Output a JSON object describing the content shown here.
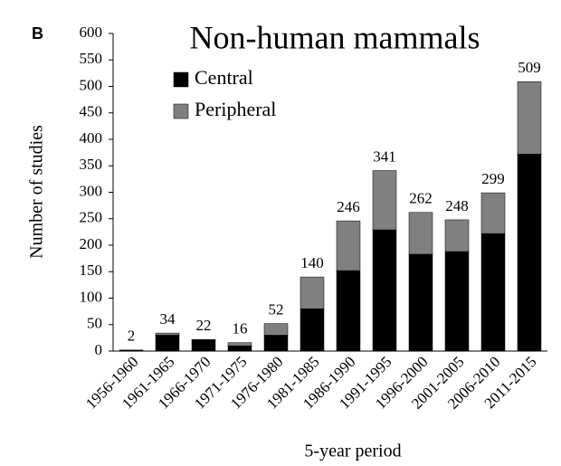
{
  "chart_data": {
    "type": "stacked-bar",
    "panel_label": "B",
    "title": "Non-human mammals",
    "xlabel": "5-year period",
    "ylabel": "Number of studies",
    "categories": [
      "1956-1960",
      "1961-1965",
      "1966-1970",
      "1971-1975",
      "1976-1980",
      "1981-1985",
      "1986-1990",
      "1991-1995",
      "1996-2000",
      "2001-2005",
      "2006-2010",
      "2011-2015"
    ],
    "series": [
      {
        "name": "Central",
        "color": "#000000",
        "values": [
          2,
          30,
          21,
          10,
          30,
          80,
          152,
          229,
          183,
          188,
          222,
          372
        ]
      },
      {
        "name": "Peripheral",
        "color": "#808080",
        "values": [
          0,
          4,
          1,
          6,
          22,
          60,
          94,
          112,
          79,
          60,
          77,
          137
        ]
      }
    ],
    "totals": [
      2,
      34,
      22,
      16,
      52,
      140,
      246,
      341,
      262,
      248,
      299,
      509
    ],
    "ylim": [
      0,
      600
    ],
    "yticks": [
      0,
      50,
      100,
      150,
      200,
      250,
      300,
      350,
      400,
      450,
      500,
      550,
      600
    ]
  }
}
